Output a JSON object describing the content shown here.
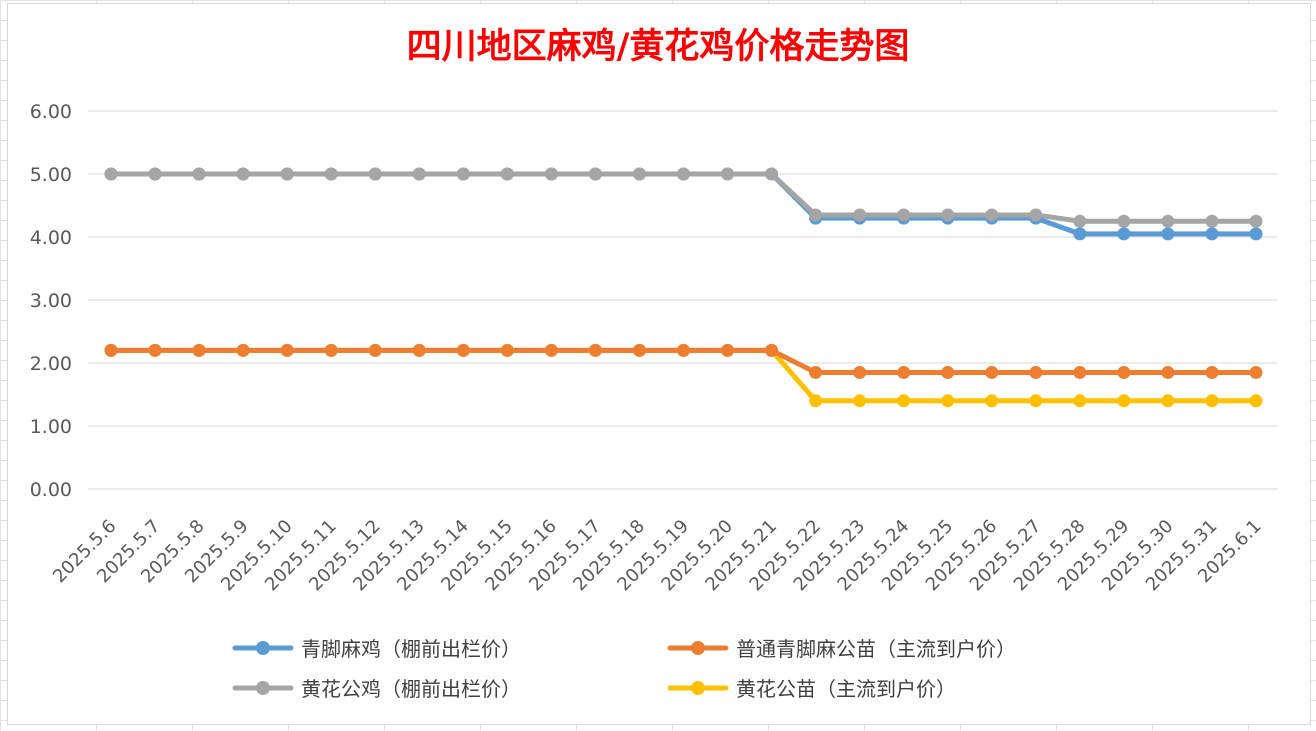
{
  "chart_data": {
    "type": "line",
    "title": "四川地区麻鸡/黄花鸡价格走势图",
    "xlabel": "",
    "ylabel": "",
    "ylim": [
      0,
      6
    ],
    "yticks": [
      "0.00",
      "1.00",
      "2.00",
      "3.00",
      "4.00",
      "5.00",
      "6.00"
    ],
    "grid": true,
    "legend_position": "bottom",
    "categories": [
      "2025.5.6",
      "2025.5.7",
      "2025.5.8",
      "2025.5.9",
      "2025.5.10",
      "2025.5.11",
      "2025.5.12",
      "2025.5.13",
      "2025.5.14",
      "2025.5.15",
      "2025.5.16",
      "2025.5.17",
      "2025.5.18",
      "2025.5.19",
      "2025.5.20",
      "2025.5.21",
      "2025.5.22",
      "2025.5.23",
      "2025.5.24",
      "2025.5.25",
      "2025.5.26",
      "2025.5.27",
      "2025.5.28",
      "2025.5.29",
      "2025.5.30",
      "2025.5.31",
      "2025.6.1"
    ],
    "series": [
      {
        "name": "青脚麻鸡（棚前出栏价）",
        "color": "#5b9bd5",
        "values": [
          5,
          5,
          5,
          5,
          5,
          5,
          5,
          5,
          5,
          5,
          5,
          5,
          5,
          5,
          5,
          5,
          4.3,
          4.3,
          4.3,
          4.3,
          4.3,
          4.3,
          4.05,
          4.05,
          4.05,
          4.05,
          4.05
        ]
      },
      {
        "name": "普通青脚麻公苗（主流到户价）",
        "color": "#ed7d31",
        "values": [
          2.2,
          2.2,
          2.2,
          2.2,
          2.2,
          2.2,
          2.2,
          2.2,
          2.2,
          2.2,
          2.2,
          2.2,
          2.2,
          2.2,
          2.2,
          2.2,
          1.85,
          1.85,
          1.85,
          1.85,
          1.85,
          1.85,
          1.85,
          1.85,
          1.85,
          1.85,
          1.85
        ]
      },
      {
        "name": "黄花公鸡（棚前出栏价）",
        "color": "#a5a5a5",
        "values": [
          5,
          5,
          5,
          5,
          5,
          5,
          5,
          5,
          5,
          5,
          5,
          5,
          5,
          5,
          5,
          5,
          4.35,
          4.35,
          4.35,
          4.35,
          4.35,
          4.35,
          4.25,
          4.25,
          4.25,
          4.25,
          4.25
        ]
      },
      {
        "name": "黄花公苗（主流到户价）",
        "color": "#ffc000",
        "values": [
          2.2,
          2.2,
          2.2,
          2.2,
          2.2,
          2.2,
          2.2,
          2.2,
          2.2,
          2.2,
          2.2,
          2.2,
          2.2,
          2.2,
          2.2,
          2.2,
          1.4,
          1.4,
          1.4,
          1.4,
          1.4,
          1.4,
          1.4,
          1.4,
          1.4,
          1.4,
          1.4
        ]
      }
    ]
  }
}
